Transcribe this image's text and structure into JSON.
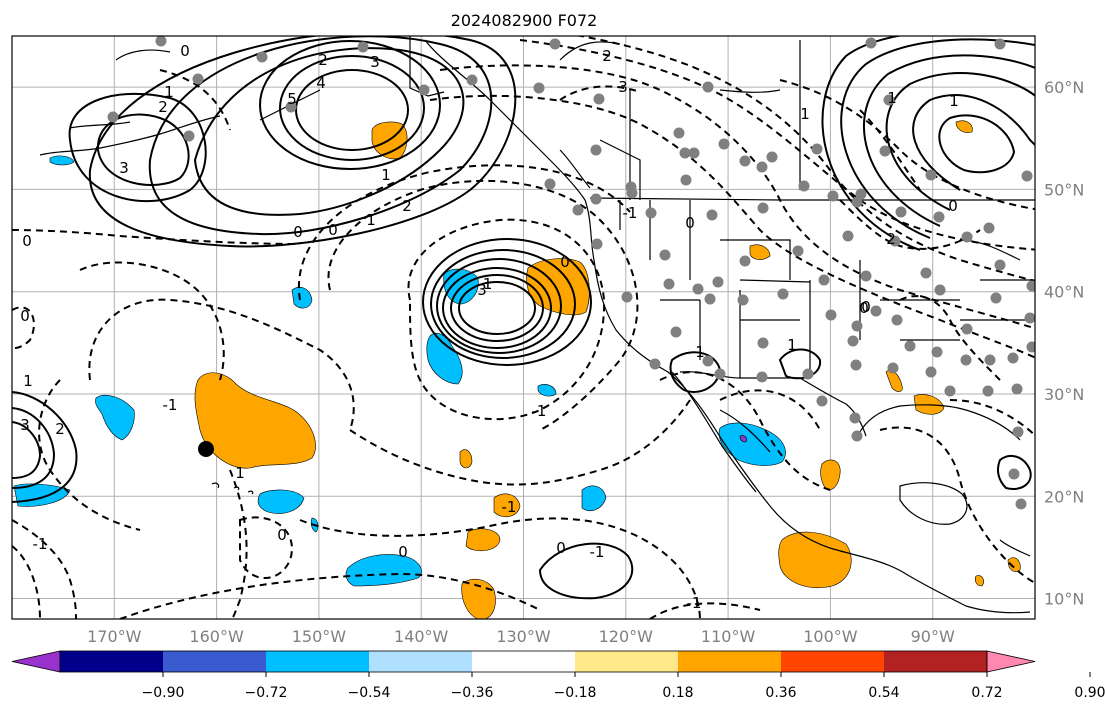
{
  "title": "2024082900 F072",
  "map": {
    "x_ticks": [
      {
        "lon": -170,
        "label": "170°W"
      },
      {
        "lon": -160,
        "label": "160°W"
      },
      {
        "lon": -150,
        "label": "150°W"
      },
      {
        "lon": -140,
        "label": "140°W"
      },
      {
        "lon": -130,
        "label": "130°W"
      },
      {
        "lon": -120,
        "label": "120°W"
      },
      {
        "lon": -110,
        "label": "110°W"
      },
      {
        "lon": -100,
        "label": "100°W"
      },
      {
        "lon": -90,
        "label": "90°W"
      }
    ],
    "y_ticks": [
      {
        "lat": 60,
        "label": "60°N"
      },
      {
        "lat": 50,
        "label": "50°N"
      },
      {
        "lat": 40,
        "label": "40°N"
      },
      {
        "lat": 30,
        "label": "30°N"
      },
      {
        "lat": 20,
        "label": "20°N"
      },
      {
        "lat": 10,
        "label": "10°N"
      }
    ],
    "extent": {
      "lon_min": -180,
      "lon_max": -80,
      "lat_min": 8,
      "lat_max": 65
    },
    "contour_labels": [
      "0",
      "2",
      "3",
      "4",
      "5",
      "1",
      "2",
      "3",
      "0",
      "0",
      "1",
      "1",
      "2",
      "3",
      "2",
      "3",
      "1",
      "1",
      "0",
      "0",
      "1",
      "-1",
      "0",
      "0",
      "1",
      "-1",
      "0",
      "1",
      "2",
      "0",
      "3",
      "-1",
      "2",
      "1",
      "-1",
      "0",
      "0",
      "-1",
      "-1",
      "0",
      "-1",
      "-1",
      "1",
      "0"
    ]
  },
  "colorbar": {
    "colors": [
      "#9932cc",
      "#00008b",
      "#3a5bcf",
      "#00bfff",
      "#b0e0ff",
      "#ffffff",
      "#ffe88a",
      "#ffa500",
      "#ff4500",
      "#b22222",
      "#ff88b0"
    ],
    "labels": [
      "−0.90",
      "−0.72",
      "−0.54",
      "−0.36",
      "−0.18",
      "0.18",
      "0.36",
      "0.54",
      "0.72",
      "0.90"
    ]
  },
  "colors": {
    "positive_fill": "#ffa500",
    "negative_fill": "#00bfff",
    "station_dots": "#808080",
    "marker": "#000000"
  }
}
